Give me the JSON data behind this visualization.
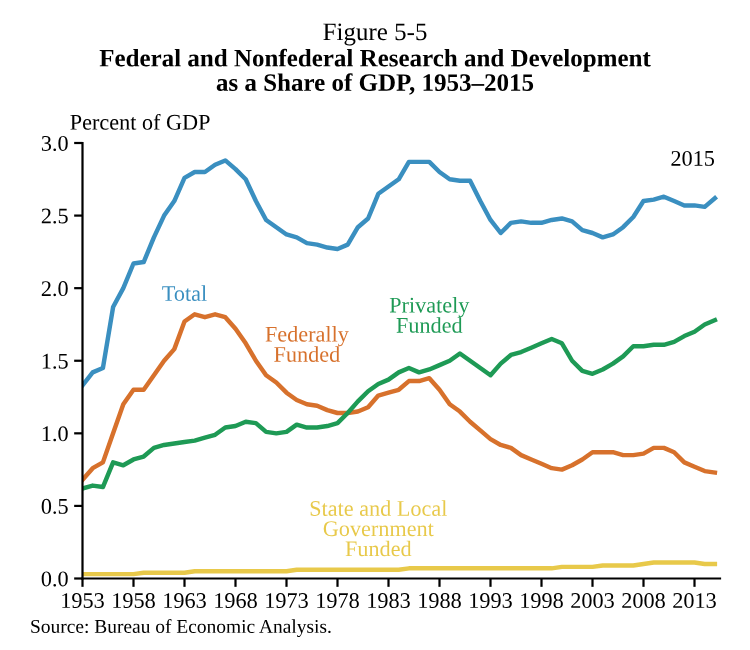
{
  "chart_data": {
    "type": "line",
    "title": "Figure 5-5",
    "subtitle": "Federal and Nonfederal Research and Development\nas a Share of GDP, 1953–2015",
    "ylabel": "Percent of GDP",
    "x": [
      1953,
      1954,
      1955,
      1956,
      1957,
      1958,
      1959,
      1960,
      1961,
      1962,
      1963,
      1964,
      1965,
      1966,
      1967,
      1968,
      1969,
      1970,
      1971,
      1972,
      1973,
      1974,
      1975,
      1976,
      1977,
      1978,
      1979,
      1980,
      1981,
      1982,
      1983,
      1984,
      1985,
      1986,
      1987,
      1988,
      1989,
      1990,
      1991,
      1992,
      1993,
      1994,
      1995,
      1996,
      1997,
      1998,
      1999,
      2000,
      2001,
      2002,
      2003,
      2004,
      2005,
      2006,
      2007,
      2008,
      2009,
      2010,
      2011,
      2012,
      2013,
      2014,
      2015
    ],
    "series": [
      {
        "name": "Total",
        "color": "#3a8fc0",
        "values": [
          1.33,
          1.42,
          1.45,
          1.87,
          2.0,
          2.17,
          2.18,
          2.35,
          2.5,
          2.6,
          2.76,
          2.8,
          2.8,
          2.85,
          2.88,
          2.82,
          2.75,
          2.6,
          2.47,
          2.42,
          2.37,
          2.35,
          2.31,
          2.3,
          2.28,
          2.27,
          2.3,
          2.42,
          2.48,
          2.65,
          2.7,
          2.75,
          2.87,
          2.87,
          2.87,
          2.8,
          2.75,
          2.74,
          2.74,
          2.6,
          2.47,
          2.38,
          2.45,
          2.46,
          2.45,
          2.45,
          2.47,
          2.48,
          2.46,
          2.4,
          2.38,
          2.35,
          2.37,
          2.42,
          2.49,
          2.6,
          2.61,
          2.63,
          2.6,
          2.57,
          2.57,
          2.56,
          2.62
        ]
      },
      {
        "name": "Federally\nFunded",
        "color": "#d7712c",
        "values": [
          0.68,
          0.76,
          0.8,
          1.0,
          1.2,
          1.3,
          1.3,
          1.4,
          1.5,
          1.58,
          1.77,
          1.82,
          1.8,
          1.82,
          1.8,
          1.72,
          1.62,
          1.5,
          1.4,
          1.35,
          1.28,
          1.23,
          1.2,
          1.19,
          1.16,
          1.14,
          1.14,
          1.15,
          1.18,
          1.26,
          1.28,
          1.3,
          1.36,
          1.36,
          1.38,
          1.3,
          1.2,
          1.15,
          1.08,
          1.02,
          0.96,
          0.92,
          0.9,
          0.85,
          0.82,
          0.79,
          0.76,
          0.75,
          0.78,
          0.82,
          0.87,
          0.87,
          0.87,
          0.85,
          0.85,
          0.86,
          0.9,
          0.9,
          0.87,
          0.8,
          0.77,
          0.74,
          0.73
        ]
      },
      {
        "name": "Privately\nFunded",
        "color": "#1e9a55",
        "values": [
          0.62,
          0.64,
          0.63,
          0.8,
          0.78,
          0.82,
          0.84,
          0.9,
          0.92,
          0.93,
          0.94,
          0.95,
          0.97,
          0.99,
          1.04,
          1.05,
          1.08,
          1.07,
          1.01,
          1.0,
          1.01,
          1.06,
          1.04,
          1.04,
          1.05,
          1.07,
          1.14,
          1.22,
          1.29,
          1.34,
          1.37,
          1.42,
          1.45,
          1.42,
          1.44,
          1.47,
          1.5,
          1.55,
          1.5,
          1.45,
          1.4,
          1.48,
          1.54,
          1.56,
          1.59,
          1.62,
          1.65,
          1.62,
          1.5,
          1.43,
          1.41,
          1.44,
          1.48,
          1.53,
          1.6,
          1.6,
          1.61,
          1.61,
          1.63,
          1.67,
          1.7,
          1.75,
          1.78
        ]
      },
      {
        "name": "State and Local\nGovernment\nFunded",
        "color": "#e8c94a",
        "values": [
          0.03,
          0.03,
          0.03,
          0.03,
          0.03,
          0.03,
          0.04,
          0.04,
          0.04,
          0.04,
          0.04,
          0.05,
          0.05,
          0.05,
          0.05,
          0.05,
          0.05,
          0.05,
          0.05,
          0.05,
          0.05,
          0.06,
          0.06,
          0.06,
          0.06,
          0.06,
          0.06,
          0.06,
          0.06,
          0.06,
          0.06,
          0.06,
          0.07,
          0.07,
          0.07,
          0.07,
          0.07,
          0.07,
          0.07,
          0.07,
          0.07,
          0.07,
          0.07,
          0.07,
          0.07,
          0.07,
          0.07,
          0.08,
          0.08,
          0.08,
          0.08,
          0.09,
          0.09,
          0.09,
          0.09,
          0.1,
          0.11,
          0.11,
          0.11,
          0.11,
          0.11,
          0.1,
          0.1
        ]
      }
    ],
    "xlim": [
      1953,
      2015.5
    ],
    "xticks": [
      1953,
      1958,
      1963,
      1968,
      1973,
      1978,
      1983,
      1988,
      1993,
      1998,
      2003,
      2008,
      2013
    ],
    "ylim": [
      0,
      3
    ],
    "yticks": [
      {
        "value": 0,
        "label": "0.0"
      },
      {
        "value": 0.5,
        "label": "0.5"
      },
      {
        "value": 1,
        "label": "1.0"
      },
      {
        "value": 1.5,
        "label": "1.5"
      },
      {
        "value": 2,
        "label": "2.0"
      },
      {
        "value": 2.5,
        "label": "2.5"
      },
      {
        "value": 3,
        "label": "3.0"
      }
    ],
    "annotations": [
      {
        "text": "2015",
        "x": 2015,
        "y": 2.62
      },
      "Source: Bureau of Economic Analysis."
    ],
    "grid": false,
    "legend": false,
    "marker": "none",
    "line_style": "solid"
  }
}
